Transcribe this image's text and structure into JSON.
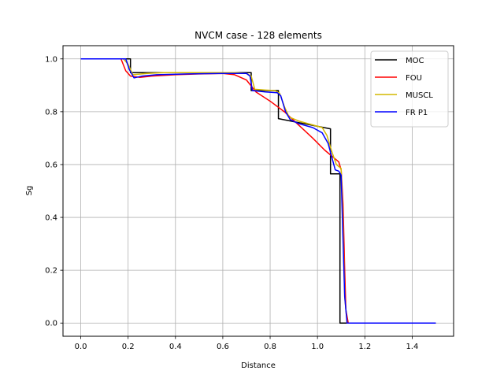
{
  "chart_data": {
    "type": "line",
    "title": "NVCM case - 128 elements",
    "xlabel": "Distance",
    "ylabel": "Sg",
    "xlim": [
      -0.075,
      1.575
    ],
    "ylim": [
      -0.05,
      1.05
    ],
    "xticks": [
      0.0,
      0.2,
      0.4,
      0.6,
      0.8,
      1.0,
      1.2,
      1.4
    ],
    "xtick_labels": [
      "0.0",
      "0.2",
      "0.4",
      "0.6",
      "0.8",
      "1.0",
      "1.2",
      "1.4"
    ],
    "yticks": [
      0.0,
      0.2,
      0.4,
      0.6,
      0.8,
      1.0
    ],
    "ytick_labels": [
      "0.0",
      "0.2",
      "0.4",
      "0.6",
      "0.8",
      "1.0"
    ],
    "grid": true,
    "legend_position": "top-right",
    "series": [
      {
        "name": "MOC",
        "color": "#000000",
        "points": [
          [
            0.0,
            1.0
          ],
          [
            0.21,
            1.0
          ],
          [
            0.21,
            0.948
          ],
          [
            0.72,
            0.948
          ],
          [
            0.72,
            0.88
          ],
          [
            0.835,
            0.88
          ],
          [
            0.835,
            0.774
          ],
          [
            1.055,
            0.735
          ],
          [
            1.055,
            0.565
          ],
          [
            1.095,
            0.565
          ],
          [
            1.095,
            0.0
          ],
          [
            1.5,
            0.0
          ]
        ]
      },
      {
        "name": "FOU",
        "color": "#ff0000",
        "points": [
          [
            0.0,
            1.0
          ],
          [
            0.17,
            1.0
          ],
          [
            0.19,
            0.955
          ],
          [
            0.21,
            0.935
          ],
          [
            0.25,
            0.93
          ],
          [
            0.3,
            0.935
          ],
          [
            0.4,
            0.94
          ],
          [
            0.5,
            0.943
          ],
          [
            0.6,
            0.945
          ],
          [
            0.65,
            0.94
          ],
          [
            0.7,
            0.92
          ],
          [
            0.74,
            0.875
          ],
          [
            0.8,
            0.84
          ],
          [
            0.86,
            0.8
          ],
          [
            0.92,
            0.75
          ],
          [
            0.98,
            0.7
          ],
          [
            1.03,
            0.655
          ],
          [
            1.07,
            0.625
          ],
          [
            1.09,
            0.61
          ],
          [
            1.1,
            0.58
          ],
          [
            1.108,
            0.45
          ],
          [
            1.115,
            0.2
          ],
          [
            1.12,
            0.05
          ],
          [
            1.13,
            0.0
          ],
          [
            1.5,
            0.0
          ]
        ]
      },
      {
        "name": "MUSCL",
        "color": "#d4b800",
        "points": [
          [
            0.0,
            1.0
          ],
          [
            0.18,
            1.0
          ],
          [
            0.2,
            0.98
          ],
          [
            0.22,
            0.94
          ],
          [
            0.28,
            0.945
          ],
          [
            0.35,
            0.948
          ],
          [
            0.5,
            0.948
          ],
          [
            0.65,
            0.948
          ],
          [
            0.7,
            0.945
          ],
          [
            0.72,
            0.935
          ],
          [
            0.735,
            0.885
          ],
          [
            0.78,
            0.882
          ],
          [
            0.82,
            0.88
          ],
          [
            0.84,
            0.87
          ],
          [
            0.86,
            0.82
          ],
          [
            0.88,
            0.78
          ],
          [
            0.92,
            0.765
          ],
          [
            0.98,
            0.75
          ],
          [
            1.02,
            0.74
          ],
          [
            1.04,
            0.71
          ],
          [
            1.06,
            0.65
          ],
          [
            1.08,
            0.6
          ],
          [
            1.1,
            0.585
          ],
          [
            1.105,
            0.45
          ],
          [
            1.115,
            0.1
          ],
          [
            1.125,
            0.0
          ],
          [
            1.5,
            0.0
          ]
        ]
      },
      {
        "name": "FR P1",
        "color": "#0000ff",
        "points": [
          [
            0.0,
            1.0
          ],
          [
            0.19,
            1.0
          ],
          [
            0.205,
            0.96
          ],
          [
            0.225,
            0.928
          ],
          [
            0.26,
            0.935
          ],
          [
            0.32,
            0.94
          ],
          [
            0.45,
            0.943
          ],
          [
            0.6,
            0.945
          ],
          [
            0.7,
            0.945
          ],
          [
            0.715,
            0.935
          ],
          [
            0.725,
            0.88
          ],
          [
            0.78,
            0.875
          ],
          [
            0.83,
            0.872
          ],
          [
            0.845,
            0.86
          ],
          [
            0.865,
            0.8
          ],
          [
            0.885,
            0.77
          ],
          [
            0.92,
            0.755
          ],
          [
            0.98,
            0.74
          ],
          [
            1.02,
            0.72
          ],
          [
            1.045,
            0.68
          ],
          [
            1.06,
            0.63
          ],
          [
            1.075,
            0.58
          ],
          [
            1.09,
            0.575
          ],
          [
            1.1,
            0.56
          ],
          [
            1.105,
            0.4
          ],
          [
            1.115,
            0.1
          ],
          [
            1.125,
            0.0
          ],
          [
            1.5,
            0.0
          ]
        ]
      }
    ]
  }
}
